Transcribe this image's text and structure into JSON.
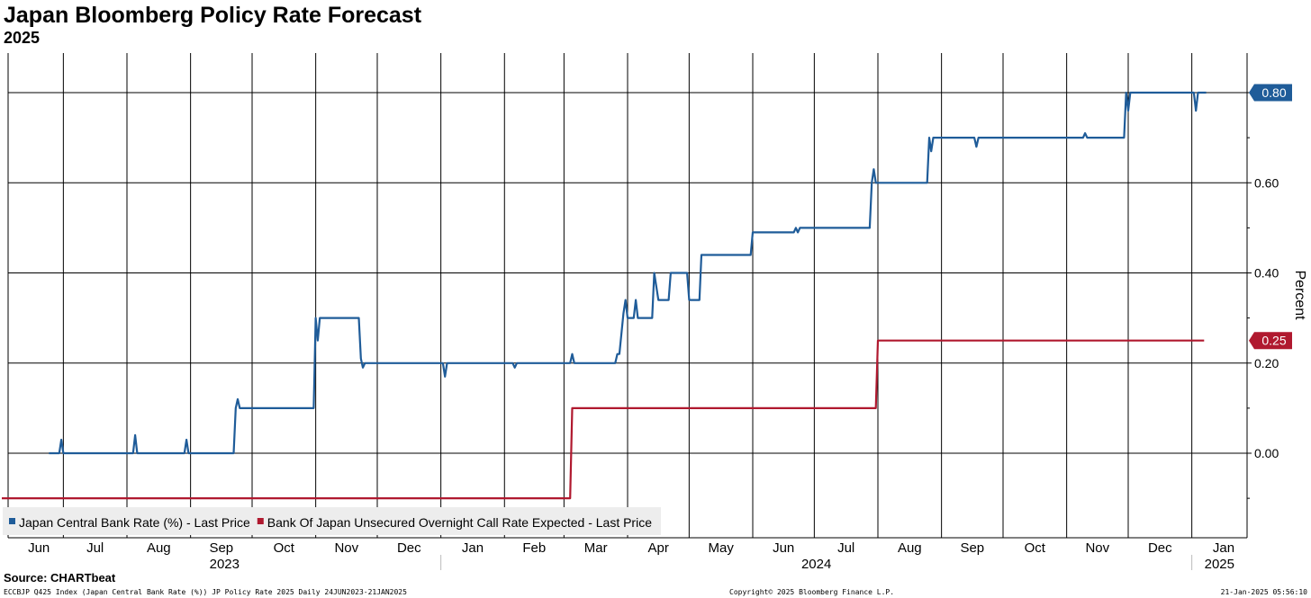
{
  "chart_data": {
    "type": "line",
    "title": "Japan Bloomberg Policy Rate Forecast",
    "subtitle": "2025",
    "ylabel": "Percent",
    "ylim": [
      -0.19,
      0.89
    ],
    "yticks": [
      "0.00",
      "0.20",
      "0.40",
      "0.60",
      "0.80"
    ],
    "xrange": [
      "2023-06-01",
      "2025-01-31"
    ],
    "months": [
      "Jun",
      "Jul",
      "Aug",
      "Sep",
      "Oct",
      "Nov",
      "Dec",
      "Jan",
      "Feb",
      "Mar",
      "Apr",
      "May",
      "Jun",
      "Jul",
      "Aug",
      "Sep",
      "Oct",
      "Nov",
      "Dec",
      "Jan"
    ],
    "years": [
      "2023",
      "2024",
      "2025"
    ],
    "grid": true,
    "legend_position": "bottom-left",
    "last_value_labels": [
      "0.80",
      "0.25"
    ],
    "series": [
      {
        "name": "Japan Central Bank Rate (%) - Last Price",
        "color": "#1f5c99",
        "points": [
          [
            "2023-06-24",
            0.0
          ],
          [
            "2023-06-29",
            0.0
          ],
          [
            "2023-06-30",
            0.03
          ],
          [
            "2023-07-01",
            0.0
          ],
          [
            "2023-08-04",
            0.0
          ],
          [
            "2023-08-05",
            0.04
          ],
          [
            "2023-08-06",
            0.0
          ],
          [
            "2023-08-29",
            0.0
          ],
          [
            "2023-08-30",
            0.03
          ],
          [
            "2023-08-31",
            0.0
          ],
          [
            "2023-09-22",
            0.0
          ],
          [
            "2023-09-23",
            0.1
          ],
          [
            "2023-09-24",
            0.12
          ],
          [
            "2023-09-25",
            0.1
          ],
          [
            "2023-10-31",
            0.1
          ],
          [
            "2023-11-01",
            0.3
          ],
          [
            "2023-11-02",
            0.25
          ],
          [
            "2023-11-03",
            0.3
          ],
          [
            "2023-11-22",
            0.3
          ],
          [
            "2023-11-23",
            0.21
          ],
          [
            "2023-11-24",
            0.19
          ],
          [
            "2023-11-25",
            0.2
          ],
          [
            "2024-01-02",
            0.2
          ],
          [
            "2024-01-03",
            0.17
          ],
          [
            "2024-01-04",
            0.2
          ],
          [
            "2024-02-05",
            0.2
          ],
          [
            "2024-02-06",
            0.19
          ],
          [
            "2024-02-07",
            0.2
          ],
          [
            "2024-03-04",
            0.2
          ],
          [
            "2024-03-05",
            0.22
          ],
          [
            "2024-03-06",
            0.2
          ],
          [
            "2024-03-26",
            0.2
          ],
          [
            "2024-03-27",
            0.22
          ],
          [
            "2024-03-28",
            0.22
          ],
          [
            "2024-03-30",
            0.31
          ],
          [
            "2024-03-31",
            0.34
          ],
          [
            "2024-04-01",
            0.3
          ],
          [
            "2024-04-04",
            0.3
          ],
          [
            "2024-04-05",
            0.34
          ],
          [
            "2024-04-06",
            0.3
          ],
          [
            "2024-04-13",
            0.3
          ],
          [
            "2024-04-14",
            0.4
          ],
          [
            "2024-04-16",
            0.34
          ],
          [
            "2024-04-21",
            0.34
          ],
          [
            "2024-04-22",
            0.4
          ],
          [
            "2024-04-30",
            0.4
          ],
          [
            "2024-05-01",
            0.34
          ],
          [
            "2024-05-06",
            0.34
          ],
          [
            "2024-05-07",
            0.44
          ],
          [
            "2024-05-31",
            0.44
          ],
          [
            "2024-06-01",
            0.49
          ],
          [
            "2024-06-21",
            0.49
          ],
          [
            "2024-06-22",
            0.5
          ],
          [
            "2024-06-23",
            0.49
          ],
          [
            "2024-06-24",
            0.5
          ],
          [
            "2024-07-28",
            0.5
          ],
          [
            "2024-07-29",
            0.6
          ],
          [
            "2024-07-30",
            0.63
          ],
          [
            "2024-07-31",
            0.6
          ],
          [
            "2024-08-25",
            0.6
          ],
          [
            "2024-08-26",
            0.7
          ],
          [
            "2024-08-27",
            0.67
          ],
          [
            "2024-08-28",
            0.7
          ],
          [
            "2024-09-17",
            0.7
          ],
          [
            "2024-09-18",
            0.68
          ],
          [
            "2024-09-19",
            0.7
          ],
          [
            "2024-11-09",
            0.7
          ],
          [
            "2024-11-10",
            0.71
          ],
          [
            "2024-11-11",
            0.7
          ],
          [
            "2024-11-29",
            0.7
          ],
          [
            "2024-11-30",
            0.8
          ],
          [
            "2024-12-01",
            0.76
          ],
          [
            "2024-12-02",
            0.8
          ],
          [
            "2025-01-02",
            0.8
          ],
          [
            "2025-01-03",
            0.76
          ],
          [
            "2025-01-04",
            0.8
          ],
          [
            "2025-01-08",
            0.8
          ]
        ]
      },
      {
        "name": "Bank Of Japan Unsecured Overnight Call Rate Expected - Last Price",
        "color": "#b0192f",
        "points": [
          [
            "2023-06-01",
            -0.1
          ],
          [
            "2024-03-04",
            -0.1
          ],
          [
            "2024-03-05",
            0.1
          ],
          [
            "2024-07-31",
            0.1
          ],
          [
            "2024-08-01",
            0.25
          ],
          [
            "2025-01-07",
            0.25
          ]
        ]
      }
    ]
  },
  "source_text": "Source: CHARTbeat",
  "footer": {
    "left": "ECCBJP Q425 Index (Japan Central Bank Rate (%)) JP Policy Rate 2025  Daily 24JUN2023-21JAN2025",
    "center": "Copyright© 2025 Bloomberg Finance L.P.",
    "right": "21-Jan-2025 05:56:10"
  }
}
